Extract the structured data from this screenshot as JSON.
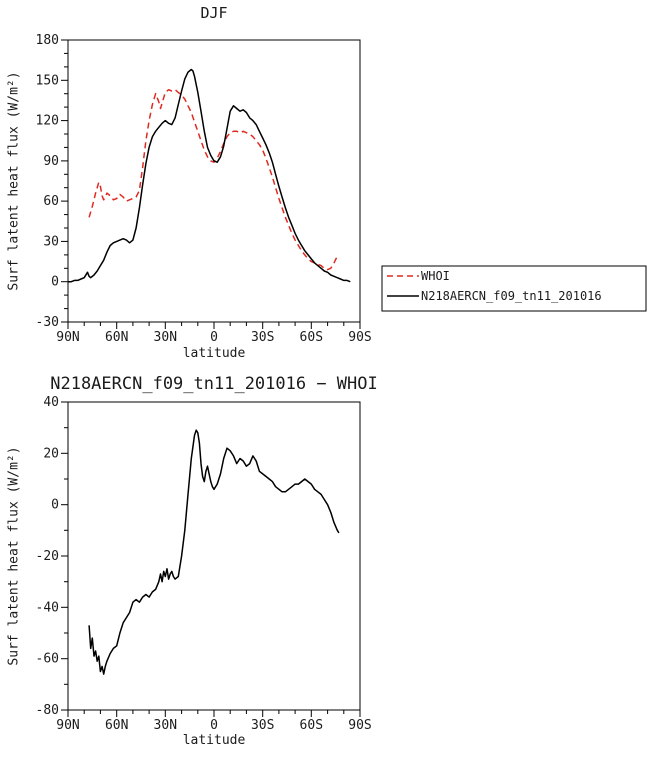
{
  "page": {
    "background": "#ffffff",
    "frame_color": "#000000",
    "text_color": "#1b1b1b"
  },
  "chart_data": [
    {
      "type": "line",
      "title": "DJF",
      "xlabel": "latitude",
      "ylabel": "Surf latent heat flux (W/m²)",
      "xlim": [
        90,
        -90
      ],
      "ylim": [
        -30,
        180
      ],
      "xtick_values": [
        90,
        60,
        30,
        0,
        -30,
        -60,
        -90
      ],
      "xtick_labels": [
        "90N",
        "60N",
        "30N",
        "0",
        "30S",
        "60S",
        "90S"
      ],
      "ytick_values": [
        -30,
        0,
        30,
        60,
        90,
        120,
        150,
        180
      ],
      "x_minor_step": 10,
      "y_minor_step": 10,
      "grid": false,
      "legend_position": "outside-right",
      "series": [
        {
          "name": "WHOI",
          "color": "#e02a20",
          "dash": "6,4",
          "x": [
            77,
            75,
            73,
            71,
            70,
            69,
            68,
            67,
            66,
            64,
            62,
            60,
            58,
            56,
            54,
            52,
            50,
            48,
            46,
            44,
            42,
            40,
            38,
            36,
            34,
            33,
            32,
            30,
            28,
            26,
            24,
            22,
            20,
            18,
            16,
            14,
            12,
            10,
            8,
            6,
            4,
            2,
            0,
            -2,
            -4,
            -6,
            -8,
            -10,
            -12,
            -14,
            -16,
            -18,
            -20,
            -22,
            -24,
            -26,
            -28,
            -30,
            -32,
            -34,
            -36,
            -38,
            -40,
            -42,
            -44,
            -46,
            -48,
            -50,
            -52,
            -54,
            -56,
            -58,
            -60,
            -62,
            -64,
            -66,
            -68,
            -70,
            -72,
            -74,
            -76
          ],
          "y": [
            48,
            56,
            66,
            74,
            71,
            64,
            61,
            63,
            66,
            64,
            61,
            62,
            65,
            63,
            60,
            61,
            62,
            63,
            68,
            85,
            105,
            120,
            132,
            140,
            134,
            129,
            133,
            141,
            143,
            142,
            143,
            141,
            139,
            136,
            131,
            126,
            119,
            112,
            105,
            98,
            93,
            90,
            89,
            92,
            97,
            103,
            108,
            111,
            112,
            112,
            111,
            112,
            111,
            110,
            108,
            105,
            102,
            98,
            92,
            85,
            78,
            70,
            62,
            55,
            48,
            42,
            36,
            31,
            27,
            23,
            20,
            17,
            15,
            14,
            13,
            12,
            10,
            9,
            10,
            14,
            19
          ]
        },
        {
          "name": "N218AERCN_f09_tn11_201016",
          "color": "#000000",
          "dash": "",
          "x": [
            90,
            88,
            86,
            84,
            82,
            80,
            78,
            77,
            76,
            74,
            72,
            70,
            68,
            66,
            64,
            62,
            60,
            58,
            56,
            54,
            52,
            50,
            48,
            46,
            44,
            42,
            40,
            38,
            36,
            34,
            32,
            30,
            28,
            26,
            24,
            22,
            20,
            18,
            16,
            14,
            13,
            12,
            10,
            8,
            6,
            4,
            2,
            0,
            -2,
            -4,
            -6,
            -8,
            -10,
            -12,
            -14,
            -16,
            -18,
            -20,
            -22,
            -24,
            -26,
            -28,
            -30,
            -32,
            -34,
            -36,
            -38,
            -40,
            -42,
            -44,
            -46,
            -48,
            -50,
            -52,
            -54,
            -56,
            -58,
            -60,
            -62,
            -64,
            -66,
            -68,
            -70,
            -72,
            -74,
            -76,
            -78,
            -80,
            -82,
            -84
          ],
          "y": [
            0,
            0,
            1,
            1,
            2,
            3,
            7,
            4,
            3,
            5,
            8,
            12,
            16,
            22,
            27,
            29,
            30,
            31,
            32,
            31,
            29,
            31,
            40,
            55,
            72,
            88,
            100,
            108,
            112,
            115,
            118,
            120,
            118,
            117,
            122,
            132,
            142,
            151,
            156,
            158,
            157,
            153,
            141,
            127,
            112,
            100,
            94,
            90,
            89,
            93,
            101,
            114,
            127,
            131,
            129,
            127,
            128,
            126,
            122,
            120,
            117,
            112,
            107,
            102,
            96,
            89,
            80,
            71,
            63,
            55,
            48,
            42,
            36,
            31,
            27,
            23,
            20,
            17,
            14,
            12,
            10,
            8,
            7,
            5,
            4,
            3,
            2,
            1,
            1,
            0
          ]
        }
      ]
    },
    {
      "type": "line",
      "title": "N218AERCN_f09_tn11_201016 − WHOI",
      "xlabel": "latitude",
      "ylabel": "Surf latent heat flux (W/m²)",
      "xlim": [
        90,
        -90
      ],
      "ylim": [
        -80,
        40
      ],
      "xtick_values": [
        90,
        60,
        30,
        0,
        -30,
        -60,
        -90
      ],
      "xtick_labels": [
        "90N",
        "60N",
        "30N",
        "0",
        "30S",
        "60S",
        "90S"
      ],
      "ytick_values": [
        -80,
        -60,
        -40,
        -20,
        0,
        20,
        40
      ],
      "x_minor_step": 10,
      "y_minor_step": 10,
      "grid": false,
      "legend_position": "none",
      "series": [
        {
          "name": "N218AERCN_f09_tn11_201016 − WHOI",
          "color": "#000000",
          "dash": "",
          "x": [
            77,
            76,
            75,
            74,
            73,
            72,
            71,
            70,
            69,
            68,
            67,
            66,
            64,
            62,
            60,
            58,
            56,
            54,
            52,
            50,
            48,
            46,
            44,
            42,
            40,
            38,
            36,
            34,
            33,
            32,
            31,
            30,
            29,
            28,
            27,
            26,
            25,
            24,
            22,
            20,
            18,
            16,
            14,
            12,
            11,
            10,
            9,
            8,
            7,
            6,
            5,
            4,
            3,
            2,
            1,
            0,
            -2,
            -4,
            -6,
            -8,
            -10,
            -12,
            -14,
            -16,
            -18,
            -20,
            -22,
            -24,
            -26,
            -28,
            -30,
            -32,
            -34,
            -36,
            -38,
            -40,
            -42,
            -44,
            -46,
            -48,
            -50,
            -52,
            -54,
            -56,
            -58,
            -60,
            -62,
            -64,
            -66,
            -68,
            -70,
            -72,
            -74,
            -76,
            -77
          ],
          "y": [
            -47,
            -56,
            -52,
            -59,
            -57,
            -61,
            -59,
            -65,
            -63,
            -66,
            -63,
            -61,
            -58,
            -56,
            -55,
            -50,
            -46,
            -44,
            -42,
            -38,
            -37,
            -38,
            -36,
            -35,
            -36,
            -34,
            -33,
            -30,
            -27,
            -30,
            -26,
            -28,
            -25,
            -29,
            -27,
            -26,
            -28,
            -29,
            -28,
            -20,
            -10,
            4,
            18,
            27,
            29,
            28,
            24,
            16,
            11,
            9,
            13,
            15,
            12,
            9,
            7,
            6,
            8,
            12,
            18,
            22,
            21,
            19,
            16,
            18,
            17,
            15,
            16,
            19,
            17,
            13,
            12,
            11,
            10,
            9,
            7,
            6,
            5,
            5,
            6,
            7,
            8,
            8,
            9,
            10,
            9,
            8,
            6,
            5,
            4,
            2,
            0,
            -3,
            -7,
            -10,
            -11
          ]
        }
      ]
    }
  ]
}
